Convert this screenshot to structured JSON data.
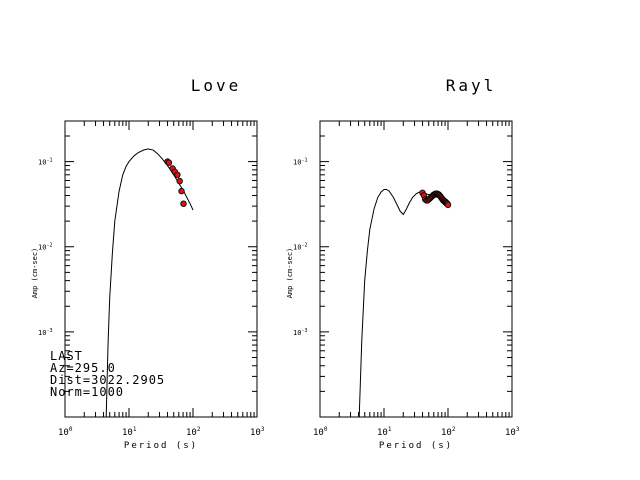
{
  "chart_data": [
    {
      "type": "line",
      "title": "Love",
      "xlabel": "Period (s)",
      "ylabel": "Amp (cm-sec)",
      "x_scale": "log",
      "y_scale": "log",
      "xlim": [
        1,
        1000
      ],
      "ylim": [
        0.0001,
        0.3
      ],
      "x_tick_labels": [
        "10^0",
        "10^1",
        "10^2",
        "10^3"
      ],
      "y_tick_labels": [
        "10^-3",
        "10^-2",
        "10^-1"
      ],
      "annotations": [
        "LAST",
        "Az=295.0",
        "Dist=3022.2905",
        "Norm=1000"
      ],
      "series": [
        {
          "kind": "line",
          "x": [
            4.4,
            4.7,
            5,
            5.5,
            6,
            7,
            8,
            9,
            10,
            12,
            14,
            17,
            20,
            24,
            28,
            33,
            40,
            50,
            60,
            70,
            80,
            90,
            100
          ],
          "y": [
            0.0001,
            0.0007,
            0.0025,
            0.0085,
            0.02,
            0.045,
            0.07,
            0.088,
            0.1,
            0.117,
            0.128,
            0.137,
            0.141,
            0.136,
            0.124,
            0.108,
            0.09,
            0.07,
            0.056,
            0.046,
            0.038,
            0.032,
            0.027
          ]
        },
        {
          "kind": "scatter",
          "x": [
            40,
            42,
            48,
            52,
            57,
            62,
            66,
            71
          ],
          "y": [
            0.1,
            0.097,
            0.083,
            0.076,
            0.07,
            0.059,
            0.045,
            0.032
          ]
        }
      ]
    },
    {
      "type": "line",
      "title": "Rayl",
      "xlabel": "Period (s)",
      "ylabel": "Amp (cm-sec)",
      "x_scale": "log",
      "y_scale": "log",
      "xlim": [
        1,
        1000
      ],
      "ylim": [
        0.0001,
        0.3
      ],
      "x_tick_labels": [
        "10^0",
        "10^1",
        "10^2",
        "10^3"
      ],
      "y_tick_labels": [
        "10^-3",
        "10^-2",
        "10^-1"
      ],
      "series": [
        {
          "kind": "line",
          "x": [
            4.1,
            4.5,
            5,
            5.5,
            6,
            7,
            8,
            9,
            10,
            11,
            12,
            14,
            16,
            18,
            20,
            22,
            25,
            28,
            32,
            36,
            40,
            45,
            50,
            55,
            60,
            65,
            70,
            75,
            80,
            85,
            90,
            95,
            100
          ],
          "y": [
            0.0001,
            0.0008,
            0.004,
            0.009,
            0.016,
            0.028,
            0.038,
            0.044,
            0.047,
            0.047,
            0.045,
            0.038,
            0.031,
            0.026,
            0.024,
            0.027,
            0.033,
            0.038,
            0.042,
            0.044,
            0.043,
            0.042,
            0.041,
            0.041,
            0.041,
            0.041,
            0.04,
            0.039,
            0.037,
            0.035,
            0.034,
            0.033,
            0.032
          ]
        },
        {
          "kind": "scatter",
          "x": [
            40,
            42,
            44,
            46,
            48,
            50,
            52,
            54,
            56,
            58,
            60,
            62,
            64,
            66,
            68,
            70,
            72,
            74,
            76,
            78,
            80,
            82,
            84,
            86,
            88,
            90,
            92,
            94,
            96,
            98,
            100
          ],
          "y": [
            0.043,
            0.04,
            0.036,
            0.035,
            0.035,
            0.036,
            0.037,
            0.038,
            0.039,
            0.04,
            0.041,
            0.041,
            0.042,
            0.042,
            0.042,
            0.041,
            0.041,
            0.04,
            0.039,
            0.038,
            0.037,
            0.036,
            0.035,
            0.035,
            0.034,
            0.034,
            0.033,
            0.033,
            0.032,
            0.032,
            0.031
          ]
        }
      ]
    }
  ]
}
